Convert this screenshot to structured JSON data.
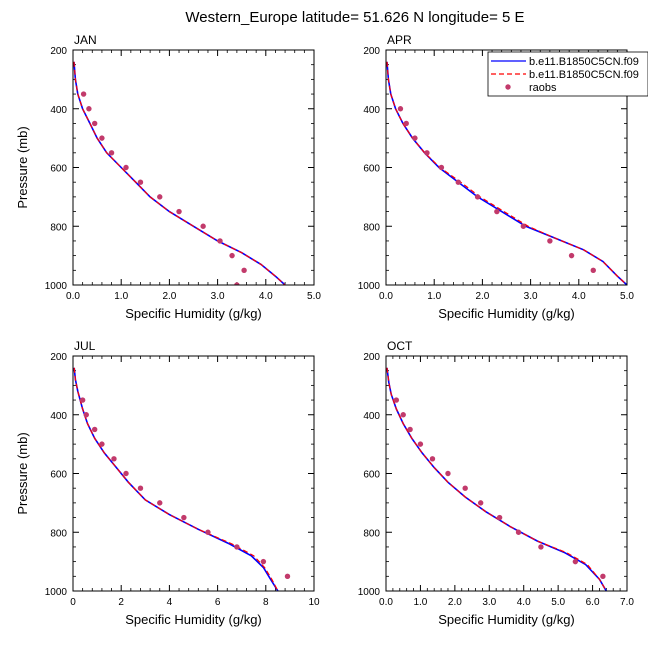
{
  "title": "Western_Europe  latitude= 51.626 N longitude= 5 E",
  "legend": {
    "placement": "top-right",
    "entries": [
      {
        "label": "b.e11.B1850C5CN.f09",
        "style": "solid",
        "color": "#0000ff"
      },
      {
        "label": "b.e11.B1850C5CN.f09",
        "style": "dashed",
        "color": "#ff0000"
      },
      {
        "label": "raobs",
        "style": "marker",
        "color": "#c23a6b"
      }
    ]
  },
  "chart_data": [
    {
      "type": "line",
      "panel": "JAN",
      "title": "JAN",
      "xlabel": "Specific Humidity (g/kg)",
      "ylabel": "Pressure (mb)",
      "xlim": [
        0,
        5
      ],
      "ylim": [
        1000,
        200
      ],
      "xticks": [
        "0.0",
        "1.0",
        "2.0",
        "3.0",
        "4.0",
        "5.0"
      ],
      "yticks": [
        "200",
        "400",
        "600",
        "800",
        "1000"
      ],
      "series": [
        {
          "name": "b.e11.B1850C5CN.f09",
          "style": "solid",
          "color": "#0000ff",
          "x": [
            0.02,
            0.05,
            0.1,
            0.2,
            0.35,
            0.5,
            0.7,
            1.0,
            1.3,
            1.6,
            2.0,
            2.5,
            3.0,
            3.5,
            3.9,
            4.2,
            4.4
          ],
          "y": [
            240,
            300,
            350,
            400,
            450,
            500,
            550,
            600,
            650,
            700,
            750,
            800,
            850,
            890,
            930,
            970,
            1000
          ]
        },
        {
          "name": "b.e11.B1850C5CN.f09",
          "style": "dashed",
          "color": "#ff0000",
          "x": [
            0.02,
            0.05,
            0.1,
            0.2,
            0.35,
            0.5,
            0.7,
            1.0,
            1.3,
            1.6,
            2.0,
            2.5,
            3.0,
            3.5,
            3.9,
            4.2,
            4.4
          ],
          "y": [
            240,
            300,
            350,
            400,
            450,
            500,
            550,
            600,
            650,
            700,
            750,
            800,
            850,
            890,
            930,
            970,
            1000
          ]
        },
        {
          "name": "raobs",
          "style": "marker",
          "color": "#c23a6b",
          "x": [
            0.22,
            0.33,
            0.45,
            0.6,
            0.8,
            1.1,
            1.4,
            1.8,
            2.2,
            2.7,
            3.05,
            3.3,
            3.55,
            3.4
          ],
          "y": [
            350,
            400,
            450,
            500,
            550,
            600,
            650,
            700,
            750,
            800,
            850,
            900,
            950,
            1000
          ]
        }
      ]
    },
    {
      "type": "line",
      "panel": "APR",
      "title": "APR",
      "xlabel": "Specific Humidity (g/kg)",
      "ylabel": "",
      "xlim": [
        0,
        5
      ],
      "ylim": [
        1000,
        200
      ],
      "xticks": [
        "0.0",
        "1.0",
        "2.0",
        "3.0",
        "4.0",
        "5.0"
      ],
      "yticks": [
        "200",
        "400",
        "600",
        "800",
        "1000"
      ],
      "series": [
        {
          "name": "b.e11.B1850C5CN.f09",
          "style": "solid",
          "color": "#0000ff",
          "x": [
            0.02,
            0.05,
            0.1,
            0.2,
            0.35,
            0.55,
            0.8,
            1.1,
            1.5,
            1.9,
            2.4,
            2.9,
            3.5,
            4.1,
            4.5,
            4.8,
            5.0
          ],
          "y": [
            240,
            300,
            350,
            400,
            450,
            500,
            550,
            600,
            650,
            700,
            750,
            800,
            840,
            880,
            920,
            970,
            1000
          ]
        },
        {
          "name": "b.e11.B1850C5CN.f09",
          "style": "dashed",
          "color": "#ff0000",
          "x": [
            0.02,
            0.05,
            0.1,
            0.2,
            0.35,
            0.55,
            0.8,
            1.12,
            1.55,
            1.95,
            2.45,
            2.95,
            3.5,
            4.1,
            4.5,
            4.8,
            5.0
          ],
          "y": [
            240,
            300,
            350,
            400,
            450,
            500,
            550,
            600,
            650,
            700,
            750,
            800,
            840,
            880,
            920,
            970,
            1000
          ]
        },
        {
          "name": "raobs",
          "style": "marker",
          "color": "#c23a6b",
          "x": [
            0.3,
            0.42,
            0.6,
            0.85,
            1.15,
            1.5,
            1.9,
            2.3,
            2.85,
            3.4,
            3.85,
            4.3
          ],
          "y": [
            400,
            450,
            500,
            550,
            600,
            650,
            700,
            750,
            800,
            850,
            900,
            950
          ]
        }
      ]
    },
    {
      "type": "line",
      "panel": "JUL",
      "title": "JUL",
      "xlabel": "Specific Humidity (g/kg)",
      "ylabel": "Pressure (mb)",
      "xlim": [
        0,
        10
      ],
      "ylim": [
        1000,
        200
      ],
      "xticks": [
        "0",
        "2",
        "4",
        "6",
        "8",
        "10"
      ],
      "yticks": [
        "200",
        "400",
        "600",
        "800",
        "1000"
      ],
      "series": [
        {
          "name": "b.e11.B1850C5CN.f09",
          "style": "solid",
          "color": "#0000ff",
          "x": [
            0.05,
            0.1,
            0.2,
            0.4,
            0.6,
            0.9,
            1.3,
            1.8,
            2.3,
            3.0,
            4.0,
            5.2,
            6.5,
            7.4,
            7.9,
            8.2,
            8.5
          ],
          "y": [
            240,
            280,
            320,
            380,
            430,
            480,
            530,
            580,
            630,
            690,
            740,
            790,
            840,
            880,
            920,
            960,
            1000
          ]
        },
        {
          "name": "b.e11.B1850C5CN.f09",
          "style": "dashed",
          "color": "#ff0000",
          "x": [
            0.05,
            0.1,
            0.2,
            0.4,
            0.6,
            0.9,
            1.3,
            1.8,
            2.3,
            3.0,
            4.0,
            5.2,
            6.6,
            7.5,
            7.95,
            8.25,
            8.5
          ],
          "y": [
            240,
            280,
            320,
            380,
            430,
            480,
            530,
            580,
            630,
            690,
            740,
            790,
            840,
            880,
            920,
            960,
            1000
          ]
        },
        {
          "name": "raobs",
          "style": "marker",
          "color": "#c23a6b",
          "x": [
            0.4,
            0.55,
            0.9,
            1.2,
            1.7,
            2.2,
            2.8,
            3.6,
            4.6,
            5.6,
            6.8,
            7.9,
            8.9
          ],
          "y": [
            350,
            400,
            450,
            500,
            550,
            600,
            650,
            700,
            750,
            800,
            850,
            900,
            950
          ]
        }
      ]
    },
    {
      "type": "line",
      "panel": "OCT",
      "title": "OCT",
      "xlabel": "Specific Humidity (g/kg)",
      "ylabel": "",
      "xlim": [
        0,
        7
      ],
      "ylim": [
        1000,
        200
      ],
      "xticks": [
        "0.0",
        "1.0",
        "2.0",
        "3.0",
        "4.0",
        "5.0",
        "6.0",
        "7.0"
      ],
      "yticks": [
        "200",
        "400",
        "600",
        "800",
        "1000"
      ],
      "series": [
        {
          "name": "b.e11.B1850C5CN.f09",
          "style": "solid",
          "color": "#0000ff",
          "x": [
            0.03,
            0.08,
            0.15,
            0.3,
            0.5,
            0.75,
            1.05,
            1.4,
            1.8,
            2.3,
            2.9,
            3.6,
            4.4,
            5.2,
            5.8,
            6.2,
            6.4
          ],
          "y": [
            240,
            290,
            330,
            380,
            430,
            480,
            530,
            580,
            630,
            680,
            730,
            780,
            830,
            870,
            910,
            960,
            1000
          ]
        },
        {
          "name": "b.e11.B1850C5CN.f09",
          "style": "dashed",
          "color": "#ff0000",
          "x": [
            0.03,
            0.08,
            0.15,
            0.3,
            0.5,
            0.75,
            1.05,
            1.4,
            1.8,
            2.3,
            2.9,
            3.6,
            4.4,
            5.25,
            5.85,
            6.2,
            6.4
          ],
          "y": [
            240,
            290,
            330,
            380,
            430,
            480,
            530,
            580,
            630,
            680,
            730,
            780,
            830,
            870,
            910,
            960,
            1000
          ]
        },
        {
          "name": "raobs",
          "style": "marker",
          "color": "#c23a6b",
          "x": [
            0.3,
            0.5,
            0.7,
            1.0,
            1.35,
            1.8,
            2.3,
            2.75,
            3.3,
            3.85,
            4.5,
            5.5,
            6.3
          ],
          "y": [
            350,
            400,
            450,
            500,
            550,
            600,
            650,
            700,
            750,
            800,
            850,
            900,
            950
          ]
        }
      ]
    }
  ]
}
